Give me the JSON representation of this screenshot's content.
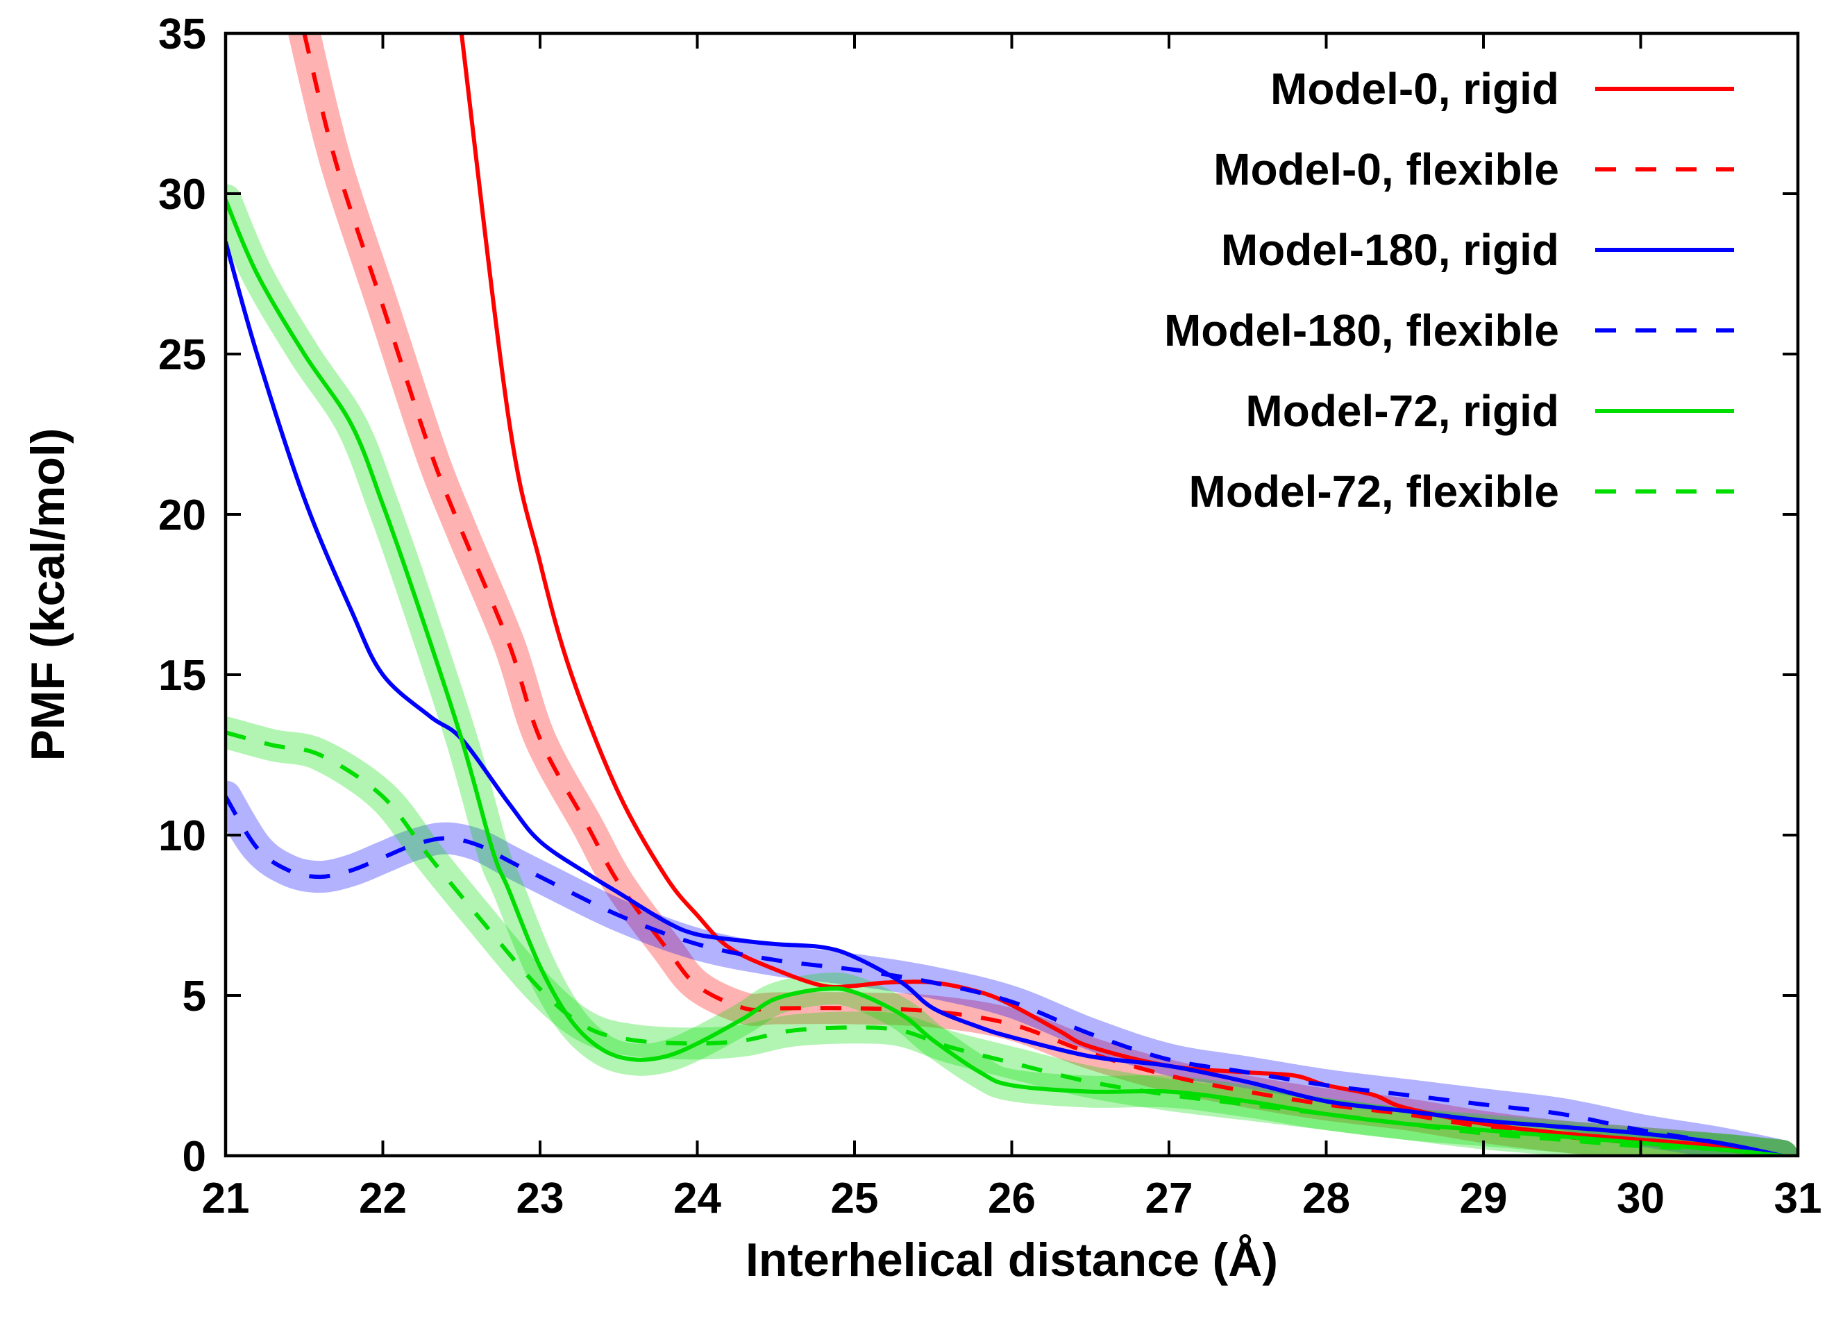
{
  "chart_data": {
    "type": "line",
    "title": "",
    "xlabel": "Interhelical distance (Å)",
    "ylabel": "PMF (kcal/mol)",
    "xlim": [
      21,
      31
    ],
    "ylim": [
      0,
      35
    ],
    "xticks": [
      21,
      22,
      23,
      24,
      25,
      26,
      27,
      28,
      29,
      30,
      31
    ],
    "yticks": [
      0,
      5,
      10,
      15,
      20,
      25,
      30,
      35
    ],
    "grid": false,
    "legend_position": "top-right",
    "series": [
      {
        "name": "Model-0, rigid",
        "color": "#ff0000",
        "dash": "solid",
        "band": false,
        "x": [
          21.0,
          22.0,
          22.5,
          22.8,
          23.0,
          23.2,
          23.5,
          23.8,
          24.0,
          24.2,
          24.5,
          24.8,
          25.0,
          25.2,
          25.5,
          25.8,
          26.0,
          26.3,
          26.5,
          27.0,
          27.5,
          27.8,
          28.0,
          28.3,
          28.5,
          29.0,
          29.5,
          30.0,
          30.5,
          30.9
        ],
        "y": [
          null,
          null,
          35,
          23,
          18.5,
          15.0,
          11.3,
          8.7,
          7.5,
          6.5,
          5.8,
          5.3,
          5.3,
          5.4,
          5.4,
          5.1,
          4.7,
          3.9,
          3.4,
          2.8,
          2.6,
          2.5,
          2.2,
          1.9,
          1.5,
          1.0,
          0.7,
          0.5,
          0.3,
          0.0
        ]
      },
      {
        "name": "Model-0, flexible",
        "color": "#ff0000",
        "dash": "dashed",
        "band": true,
        "x": [
          21.5,
          21.7,
          22.0,
          22.3,
          22.5,
          22.8,
          23.0,
          23.3,
          23.5,
          23.8,
          24.0,
          24.3,
          24.5,
          25.0,
          25.5,
          26.0,
          26.5,
          27.0,
          27.5,
          28.0,
          28.5,
          29.0,
          29.5,
          30.0,
          30.5,
          30.9
        ],
        "y": [
          35,
          31.0,
          26.5,
          22.0,
          19.5,
          16.0,
          13.0,
          10.3,
          8.5,
          6.5,
          5.3,
          4.6,
          4.6,
          4.6,
          4.5,
          4.1,
          3.2,
          2.5,
          2.0,
          1.6,
          1.3,
          0.9,
          0.6,
          0.4,
          0.2,
          0.0
        ]
      },
      {
        "name": "Model-180, rigid",
        "color": "#0000ff",
        "dash": "solid",
        "band": false,
        "x": [
          21.0,
          21.2,
          21.5,
          21.8,
          22.0,
          22.3,
          22.5,
          22.8,
          23.0,
          23.3,
          23.5,
          23.8,
          24.0,
          24.3,
          24.5,
          24.8,
          25.0,
          25.3,
          25.5,
          25.8,
          26.0,
          26.5,
          27.0,
          27.5,
          28.0,
          28.5,
          29.0,
          29.5,
          30.0,
          30.5,
          30.9
        ],
        "y": [
          28.5,
          25.0,
          20.5,
          17.0,
          15.0,
          13.7,
          13.0,
          11.0,
          9.8,
          8.8,
          8.2,
          7.3,
          6.9,
          6.7,
          6.6,
          6.5,
          6.2,
          5.4,
          4.6,
          4.0,
          3.7,
          3.1,
          2.8,
          2.3,
          1.7,
          1.4,
          1.1,
          0.9,
          0.7,
          0.4,
          0.0
        ]
      },
      {
        "name": "Model-180, flexible",
        "color": "#0000ff",
        "dash": "dashed",
        "band": true,
        "x": [
          21.0,
          21.2,
          21.4,
          21.6,
          21.8,
          22.0,
          22.2,
          22.4,
          22.6,
          22.8,
          23.0,
          23.5,
          24.0,
          24.5,
          25.0,
          25.5,
          26.0,
          26.5,
          27.0,
          27.5,
          28.0,
          28.5,
          29.0,
          29.5,
          30.0,
          30.5,
          30.9
        ],
        "y": [
          11.2,
          9.6,
          8.9,
          8.7,
          8.9,
          9.3,
          9.7,
          9.9,
          9.7,
          9.2,
          8.7,
          7.5,
          6.6,
          6.1,
          5.8,
          5.4,
          4.8,
          3.8,
          3.0,
          2.6,
          2.2,
          1.9,
          1.6,
          1.3,
          0.8,
          0.4,
          0.0
        ]
      },
      {
        "name": "Model-72, rigid",
        "color": "#00dd00",
        "dash": "solid",
        "band": true,
        "x": [
          21.0,
          21.2,
          21.5,
          21.8,
          22.0,
          22.2,
          22.5,
          22.7,
          22.8,
          23.0,
          23.2,
          23.4,
          23.6,
          23.8,
          24.0,
          24.3,
          24.5,
          24.8,
          25.0,
          25.3,
          25.5,
          25.8,
          26.0,
          26.5,
          27.0,
          27.5,
          28.0,
          28.5,
          29.0,
          29.5,
          30.0,
          30.5,
          30.9
        ],
        "y": [
          29.8,
          27.5,
          25.0,
          22.8,
          20.3,
          17.5,
          13.0,
          9.5,
          8.3,
          5.9,
          4.2,
          3.3,
          3.0,
          3.1,
          3.5,
          4.3,
          4.9,
          5.2,
          5.1,
          4.4,
          3.6,
          2.6,
          2.2,
          2.0,
          2.0,
          1.7,
          1.3,
          1.0,
          0.8,
          0.6,
          0.4,
          0.2,
          0.0
        ]
      },
      {
        "name": "Model-72, flexible",
        "color": "#00dd00",
        "dash": "dashed",
        "band": true,
        "x": [
          21.0,
          21.3,
          21.6,
          22.0,
          22.3,
          22.6,
          23.0,
          23.3,
          23.6,
          24.0,
          24.3,
          24.6,
          25.0,
          25.3,
          25.6,
          26.0,
          26.5,
          27.0,
          27.5,
          28.0,
          28.5,
          29.0,
          29.5,
          30.0,
          30.5,
          30.9
        ],
        "y": [
          13.2,
          12.8,
          12.5,
          11.2,
          9.3,
          7.5,
          5.2,
          4.0,
          3.6,
          3.5,
          3.6,
          3.9,
          4.0,
          3.9,
          3.4,
          2.9,
          2.3,
          1.9,
          1.6,
          1.3,
          1.0,
          0.7,
          0.5,
          0.3,
          0.2,
          0.0
        ]
      }
    ]
  }
}
